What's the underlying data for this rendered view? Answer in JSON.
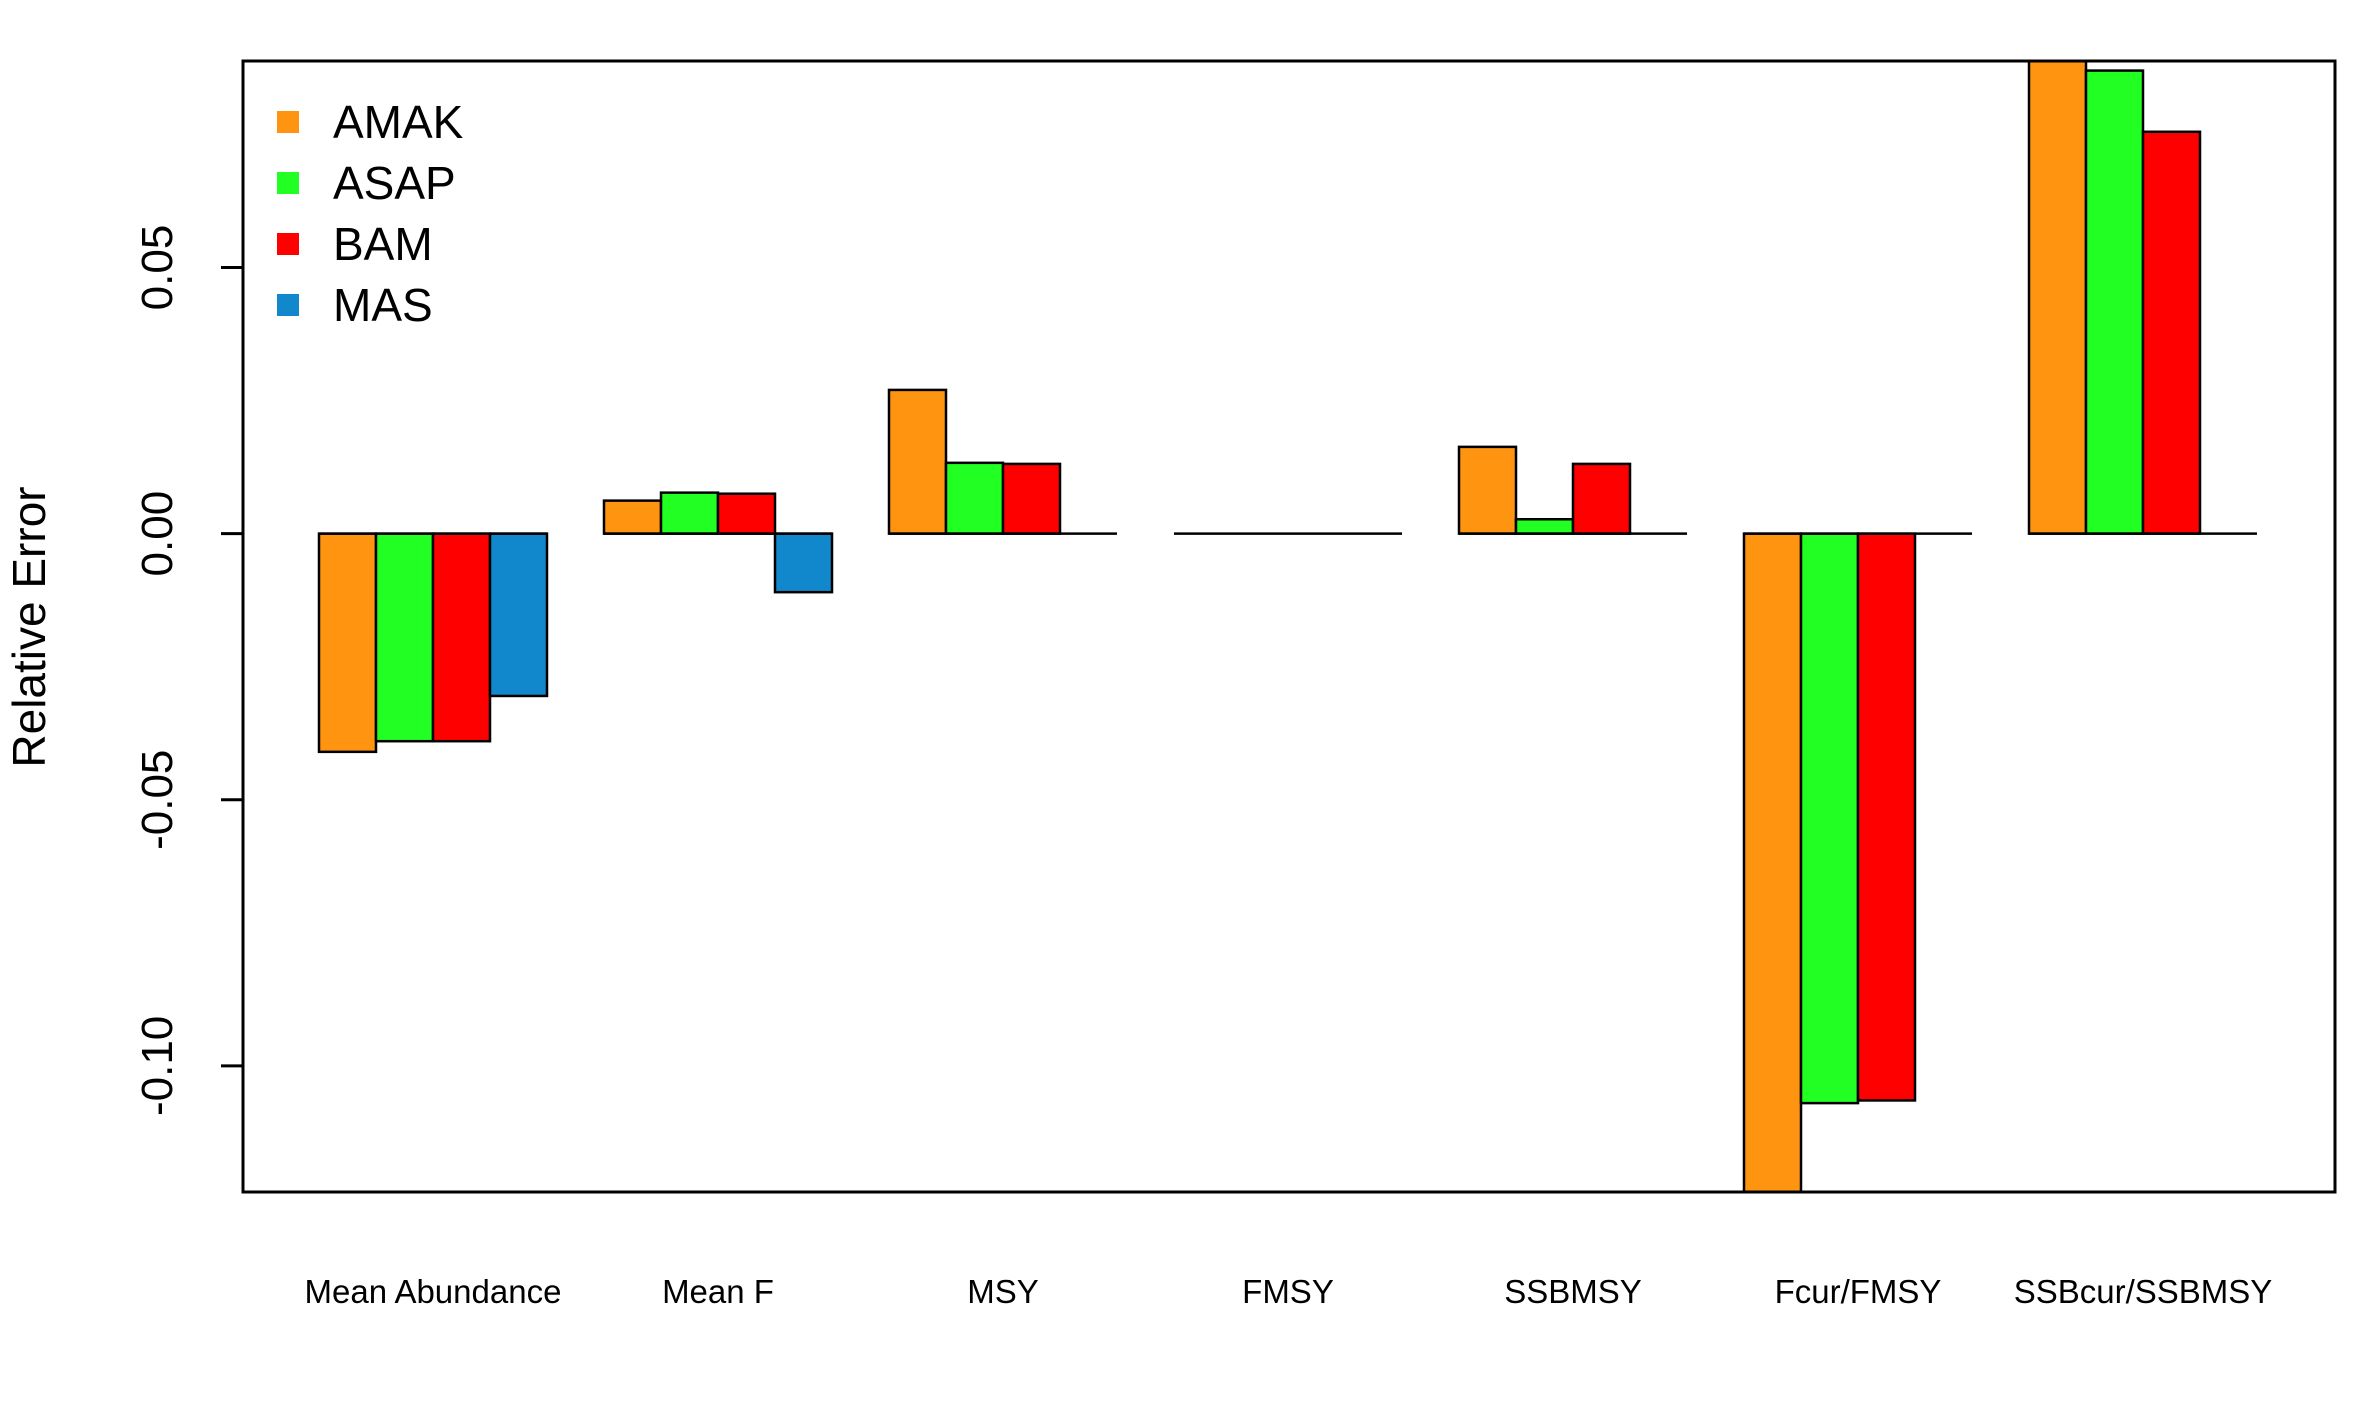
{
  "chart_data": {
    "type": "bar",
    "ylabel": "Relative Error",
    "categories": [
      "Mean Abundance",
      "Mean F",
      "MSY",
      "FMSY",
      "SSBMSY",
      "Fcur/FMSY",
      "SSBcur/SSBMSY"
    ],
    "series": [
      {
        "name": "AMAK",
        "color": "#FF9411",
        "values": [
          -0.041,
          0.0062,
          0.027,
          0.0,
          0.0163,
          -0.124,
          0.089
        ]
      },
      {
        "name": "ASAP",
        "color": "#22FF22",
        "values": [
          -0.039,
          0.0077,
          0.0133,
          0.0,
          0.0027,
          -0.107,
          0.087
        ]
      },
      {
        "name": "BAM",
        "color": "#FF0000",
        "values": [
          -0.039,
          0.0075,
          0.0131,
          0.0,
          0.0131,
          -0.1065,
          0.0755
        ]
      },
      {
        "name": "MAS",
        "color": "#1188CC",
        "values": [
          -0.0305,
          -0.011,
          null,
          null,
          null,
          null,
          null
        ]
      }
    ],
    "yticks": [
      -0.1,
      -0.05,
      0.0,
      0.05
    ],
    "ytick_labels": [
      "-0.10",
      "-0.05",
      "0.00",
      "0.05"
    ],
    "ylim": [
      -0.1237,
      0.0888
    ],
    "grid": false,
    "legend": {
      "position": "top-left"
    }
  }
}
